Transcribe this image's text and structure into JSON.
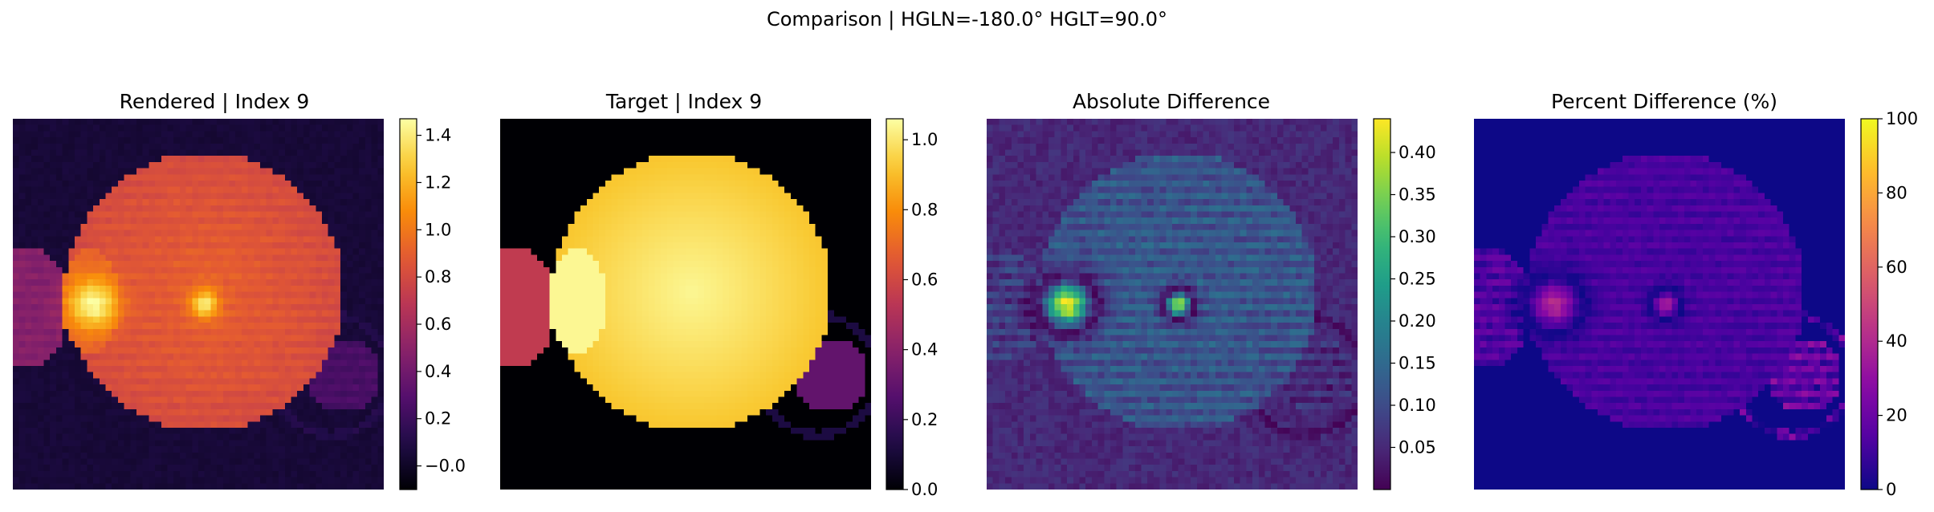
{
  "suptitle": "Comparison | HGLN=-180.0° HGLT=90.0°",
  "chart_data": [
    {
      "type": "heatmap",
      "title": "Rendered | Index 9",
      "colormap": "inferno",
      "vmin": -0.1,
      "vmax": 1.47,
      "colorbar_ticks": [
        -0.0,
        0.2,
        0.4,
        0.6,
        0.8,
        1.0,
        1.2,
        1.4
      ],
      "colorbar_tick_labels": [
        "−0.0",
        "0.2",
        "0.4",
        "0.6",
        "0.8",
        "1.0",
        "1.2",
        "1.4"
      ]
    },
    {
      "type": "heatmap",
      "title": "Target | Index 9",
      "colormap": "inferno",
      "vmin": 0.0,
      "vmax": 1.06,
      "colorbar_ticks": [
        0.0,
        0.2,
        0.4,
        0.6,
        0.8,
        1.0
      ],
      "colorbar_tick_labels": [
        "0.0",
        "0.2",
        "0.4",
        "0.6",
        "0.8",
        "1.0"
      ]
    },
    {
      "type": "heatmap",
      "title": "Absolute Difference",
      "colormap": "viridis",
      "vmin": 0.0,
      "vmax": 0.44,
      "colorbar_ticks": [
        0.05,
        0.1,
        0.15,
        0.2,
        0.25,
        0.3,
        0.35,
        0.4
      ],
      "colorbar_tick_labels": [
        "0.05",
        "0.10",
        "0.15",
        "0.20",
        "0.25",
        "0.30",
        "0.35",
        "0.40"
      ]
    },
    {
      "type": "heatmap",
      "title": "Percent Difference (%)",
      "colormap": "plasma",
      "vmin": 0,
      "vmax": 100,
      "colorbar_ticks": [
        0,
        20,
        40,
        60,
        80,
        100
      ],
      "colorbar_tick_labels": [
        "0",
        "20",
        "40",
        "60",
        "80",
        "100"
      ]
    }
  ]
}
